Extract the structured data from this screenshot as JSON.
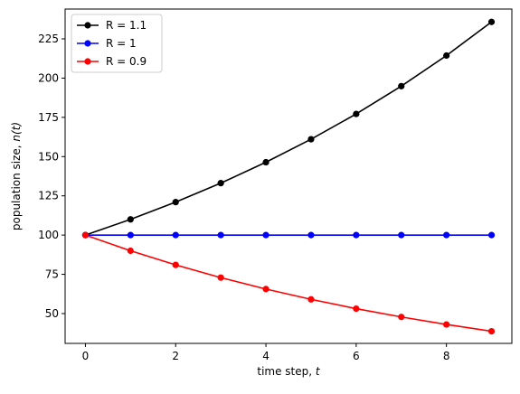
{
  "chart_data": {
    "type": "line",
    "xlabel_main": "time step, ",
    "xlabel_var": "t",
    "ylabel_main": "population size, ",
    "ylabel_var": "n(t)",
    "x": [
      0,
      1,
      2,
      3,
      4,
      5,
      6,
      7,
      8,
      9
    ],
    "xlim": [
      -0.45,
      9.45
    ],
    "ylim": [
      31,
      244
    ],
    "xticks": [
      0,
      2,
      4,
      6,
      8
    ],
    "yticks": [
      50,
      75,
      100,
      125,
      150,
      175,
      200,
      225
    ],
    "grid": false,
    "legend": "top-left",
    "series": [
      {
        "name": "R = 1.1",
        "color": "#000000",
        "values": [
          100,
          110,
          121,
          133.1,
          146.41,
          161.05,
          177.16,
          194.87,
          214.36,
          235.79
        ]
      },
      {
        "name": "R = 1",
        "color": "#0000ff",
        "values": [
          100,
          100,
          100,
          100,
          100,
          100,
          100,
          100,
          100,
          100
        ]
      },
      {
        "name": "R = 0.9",
        "color": "#ff0000",
        "values": [
          100,
          90,
          81,
          72.9,
          65.61,
          59.05,
          53.14,
          47.83,
          43.05,
          38.74
        ]
      }
    ]
  }
}
